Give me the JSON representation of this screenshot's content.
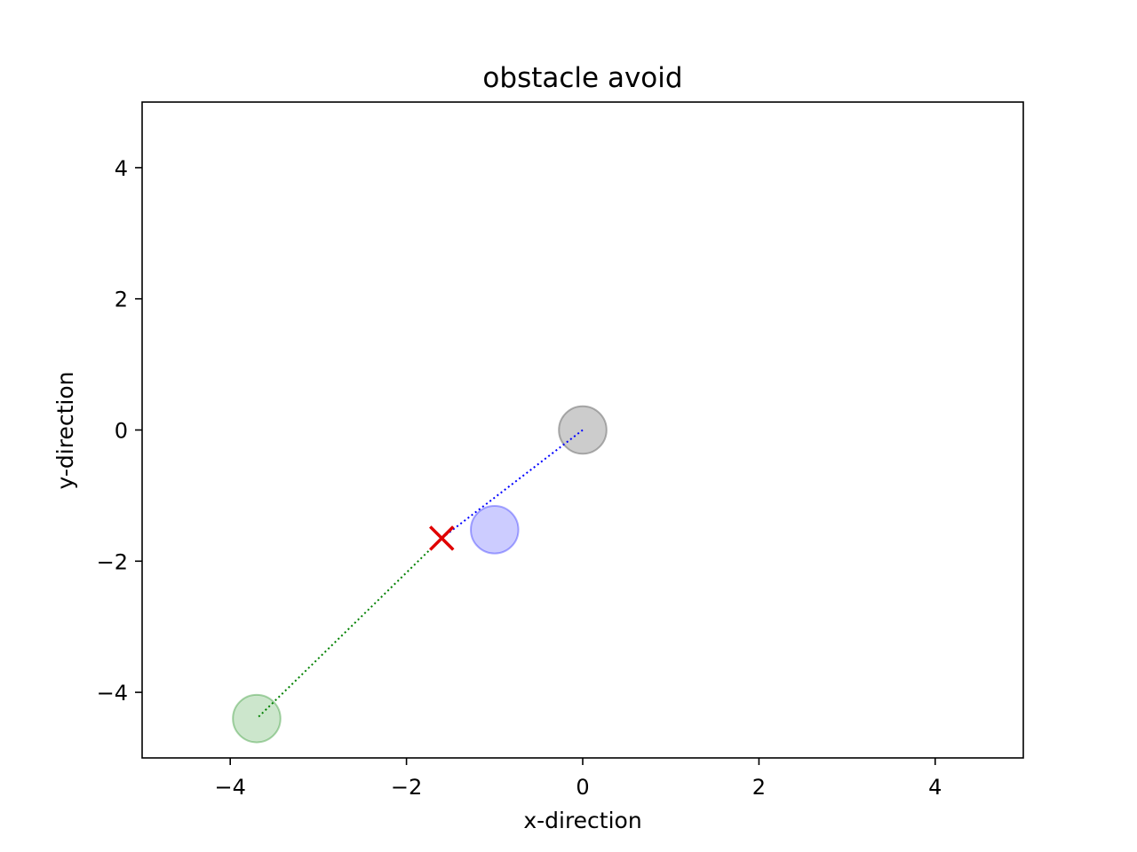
{
  "chart_data": {
    "type": "scatter",
    "title": "obstacle avoid",
    "xlabel": "x-direction",
    "ylabel": "y-direction",
    "xlim": [
      -5,
      5
    ],
    "ylim": [
      -5,
      5
    ],
    "xticks": [
      -4,
      -2,
      0,
      2,
      4
    ],
    "yticks": [
      -4,
      -2,
      0,
      2,
      4
    ],
    "xtick_labels": [
      "−4",
      "−2",
      "0",
      "2",
      "4"
    ],
    "ytick_labels": [
      "−4",
      "−2",
      "0",
      "2",
      "4"
    ],
    "grid": false,
    "series": [
      {
        "kind": "dotted-line",
        "color": "#0000ff",
        "points": [
          [
            0,
            0
          ],
          [
            -1.6,
            -1.65
          ]
        ]
      },
      {
        "kind": "dotted-line",
        "color": "#008000",
        "points": [
          [
            -1.6,
            -1.65
          ],
          [
            -3.7,
            -4.4
          ]
        ]
      }
    ],
    "circles": [
      {
        "role": "obstacle",
        "x": 0,
        "y": 0,
        "r": 0.27,
        "fill": "#808080",
        "alpha": 0.4
      },
      {
        "role": "obstacle",
        "x": -1.0,
        "y": -1.52,
        "r": 0.27,
        "fill": "#0000ff",
        "alpha": 0.2
      },
      {
        "role": "agent",
        "x": -3.7,
        "y": -4.4,
        "r": 0.27,
        "fill": "#008000",
        "alpha": 0.2
      }
    ],
    "markers": [
      {
        "symbol": "x",
        "x": -1.6,
        "y": -1.65,
        "color": "#e00000"
      }
    ]
  }
}
